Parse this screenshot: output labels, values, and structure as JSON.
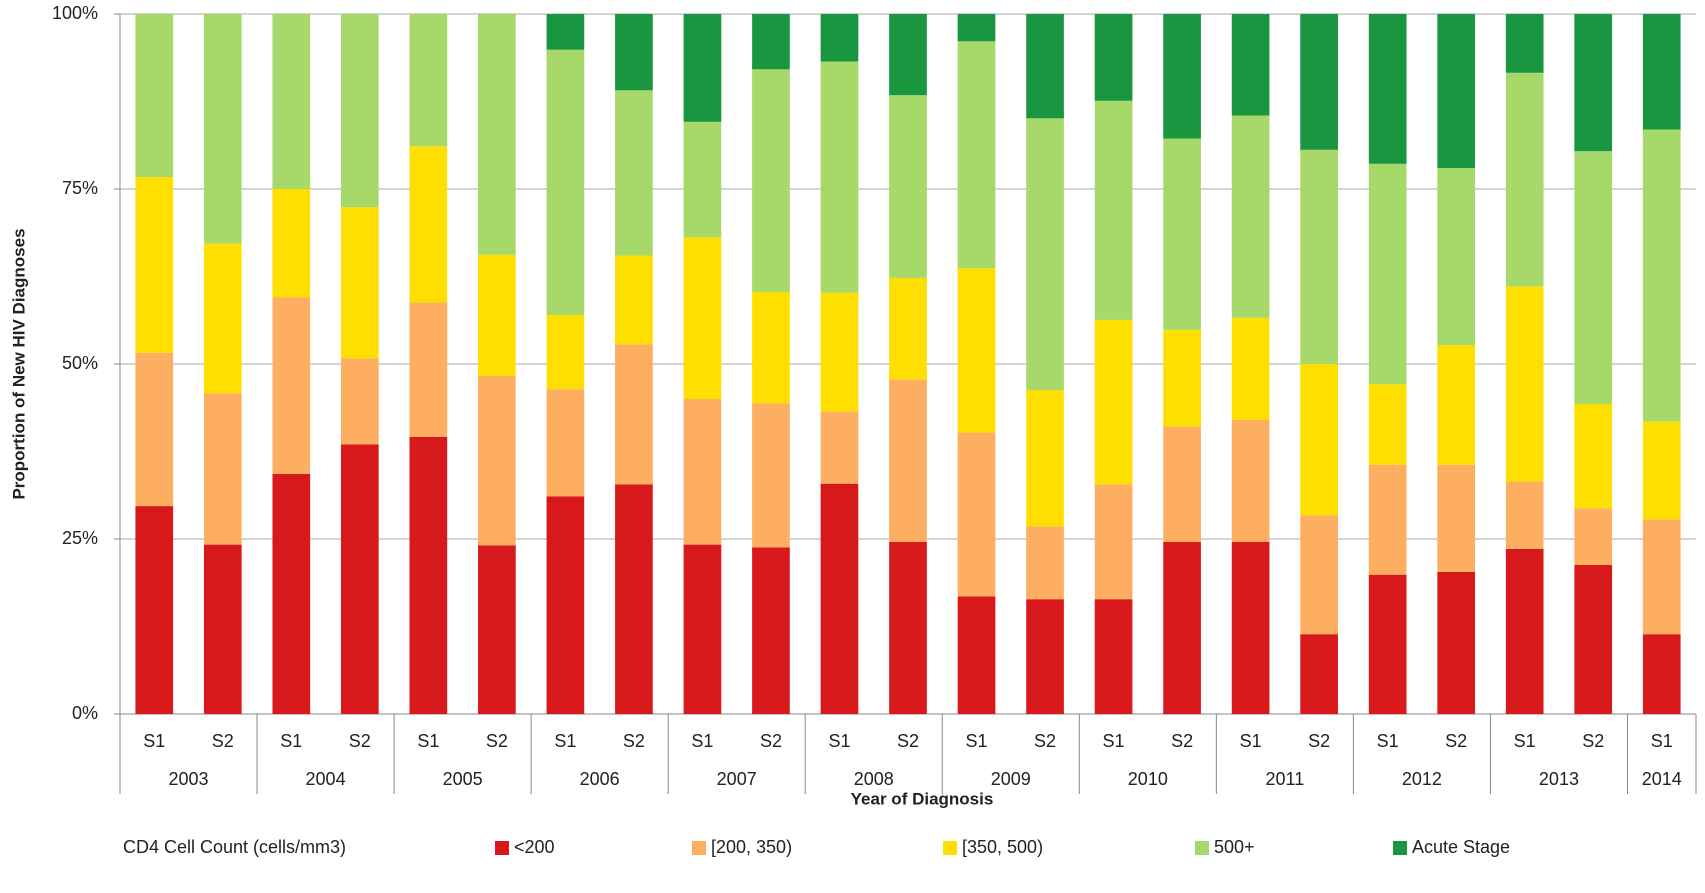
{
  "chart_data": {
    "type": "stacked_bar",
    "y_label": "Proportion of New HIV Diagnoses",
    "x_label": "Year of Diagnosis",
    "legend_title": "CD4 Cell Count (cells/mm3)",
    "groups": [
      {
        "label": "2003",
        "categories": [
          "S1",
          "S2"
        ]
      },
      {
        "label": "2004",
        "categories": [
          "S1",
          "S2"
        ]
      },
      {
        "label": "2005",
        "categories": [
          "S1",
          "S2"
        ]
      },
      {
        "label": "2006",
        "categories": [
          "S1",
          "S2"
        ]
      },
      {
        "label": "2007",
        "categories": [
          "S1",
          "S2"
        ]
      },
      {
        "label": "2008",
        "categories": [
          "S1",
          "S2"
        ]
      },
      {
        "label": "2009",
        "categories": [
          "S1",
          "S2"
        ]
      },
      {
        "label": "2010",
        "categories": [
          "S1",
          "S2"
        ]
      },
      {
        "label": "2011",
        "categories": [
          "S1",
          "S2"
        ]
      },
      {
        "label": "2012",
        "categories": [
          "S1",
          "S2"
        ]
      },
      {
        "label": "2013",
        "categories": [
          "S1",
          "S2"
        ]
      },
      {
        "label": "2014",
        "categories": [
          "S1"
        ]
      }
    ],
    "series": [
      {
        "name": "<200",
        "color": "#d7191c",
        "values": [
          29.7,
          24.2,
          34.3,
          38.5,
          39.6,
          24.1,
          31.1,
          32.8,
          24.2,
          23.8,
          32.9,
          24.6,
          16.8,
          16.4,
          16.4,
          24.6,
          24.6,
          11.4,
          19.9,
          20.3,
          23.6,
          21.3,
          11.4
        ]
      },
      {
        "name": "[200, 350)",
        "color": "#fdae61",
        "values": [
          21.9,
          21.6,
          25.2,
          12.3,
          19.2,
          24.2,
          15.3,
          20.0,
          20.8,
          20.6,
          10.3,
          23.2,
          23.4,
          10.4,
          16.4,
          16.5,
          17.4,
          17.0,
          15.7,
          15.3,
          9.6,
          8.1,
          16.4
        ]
      },
      {
        "name": "[350, 500)",
        "color": "#ffdf00",
        "values": [
          25.1,
          21.4,
          15.5,
          21.6,
          22.3,
          17.3,
          10.6,
          12.7,
          23.1,
          15.9,
          17.0,
          14.5,
          23.5,
          19.5,
          23.5,
          13.8,
          14.6,
          21.6,
          11.5,
          17.1,
          27.9,
          14.9,
          14.0
        ]
      },
      {
        "name": "500+",
        "color": "#a6d96a",
        "values": [
          23.3,
          32.8,
          25.0,
          27.6,
          18.9,
          34.4,
          37.9,
          23.6,
          16.5,
          31.8,
          33.0,
          26.1,
          32.4,
          38.8,
          31.3,
          27.3,
          28.9,
          30.6,
          31.5,
          25.3,
          30.5,
          36.1,
          41.7
        ]
      },
      {
        "name": "Acute Stage",
        "color": "#1a9641",
        "values": [
          0,
          0,
          0,
          0,
          0,
          0,
          5.1,
          10.9,
          15.4,
          7.9,
          6.8,
          11.6,
          3.9,
          14.9,
          12.4,
          17.8,
          14.5,
          19.4,
          21.4,
          22.0,
          8.4,
          19.6,
          16.5
        ]
      }
    ],
    "ylim": [
      0,
      100
    ],
    "yticks": [
      {
        "value": 0,
        "label": "0%"
      },
      {
        "value": 25,
        "label": "25%"
      },
      {
        "value": 50,
        "label": "50%"
      },
      {
        "value": 75,
        "label": "75%"
      },
      {
        "value": 100,
        "label": "100%"
      }
    ],
    "grid": true
  }
}
